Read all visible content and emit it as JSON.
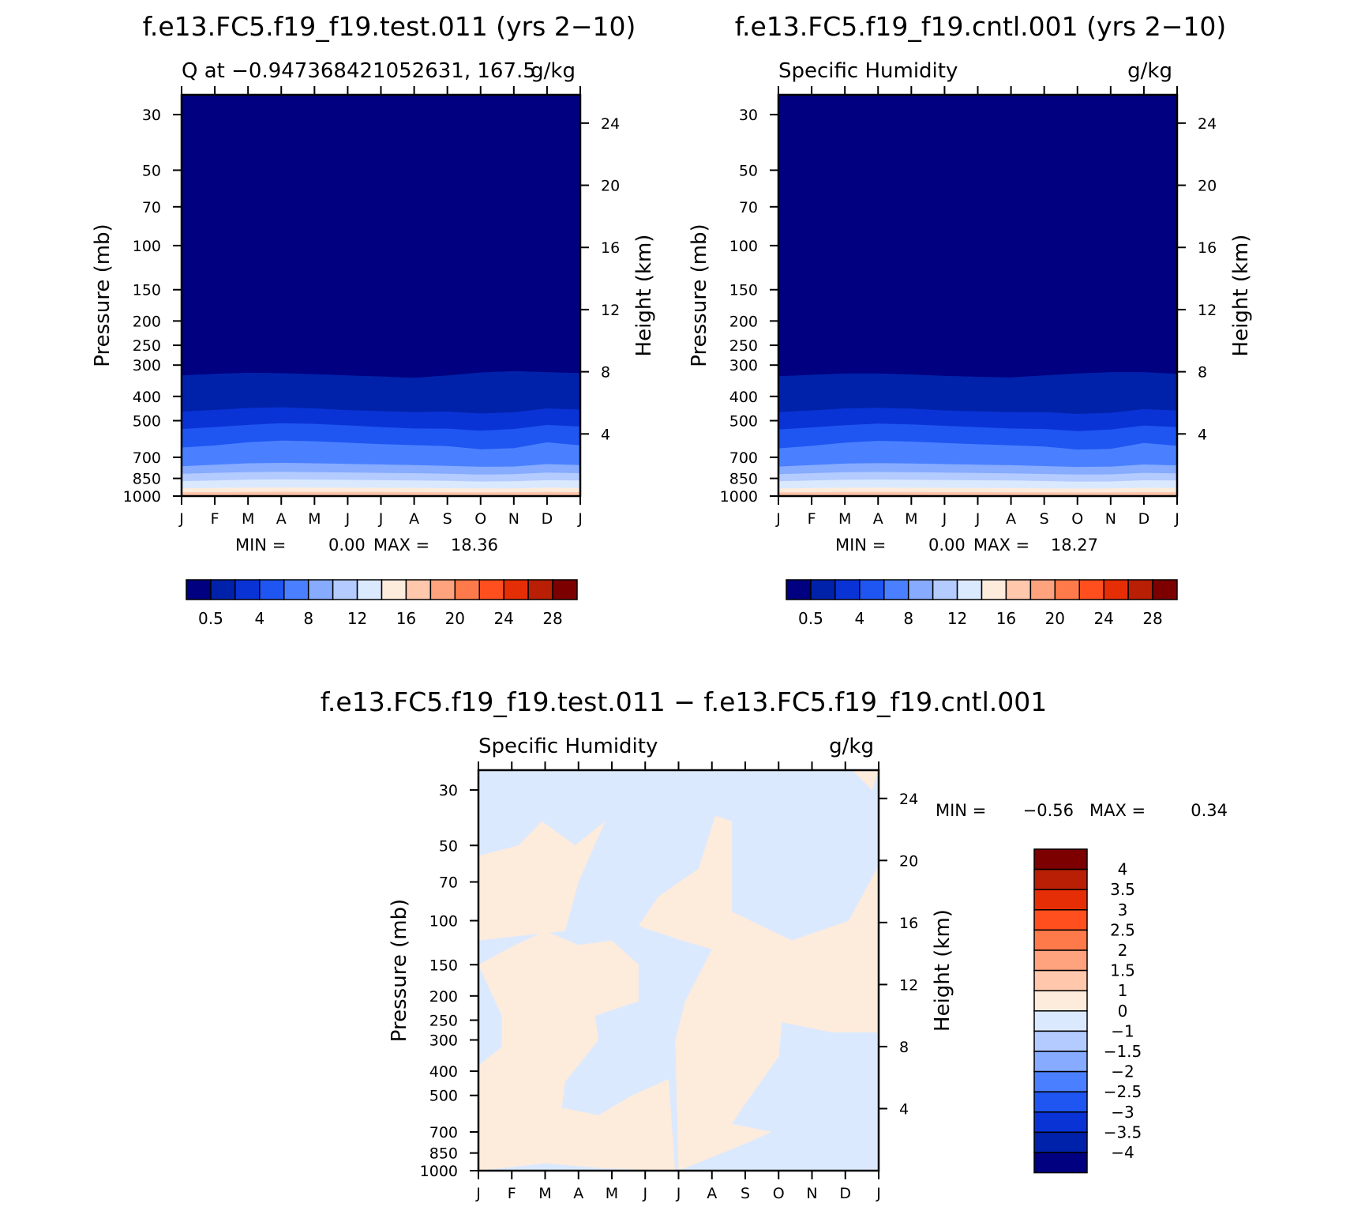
{
  "colors": {
    "seq": [
      "#000080",
      "#0022aa",
      "#0a33d6",
      "#1f55f0",
      "#4a80ff",
      "#86abff",
      "#b3cbff",
      "#dbe9ff",
      "#fdebdc",
      "#ffc7ac",
      "#ffa27e",
      "#ff7a4a",
      "#ff4f1e",
      "#e62e06",
      "#b81f05",
      "#7d0000"
    ],
    "diff": [
      "#000080",
      "#0022aa",
      "#0a33d6",
      "#1f55f0",
      "#4a80ff",
      "#86abff",
      "#b3cbff",
      "#dbe9ff",
      "#fdebdc",
      "#ffc7ac",
      "#ffa27e",
      "#ff7a4a",
      "#ff4f1e",
      "#e62e06",
      "#b81f05",
      "#7d0000"
    ]
  },
  "chart_data": [
    {
      "type": "heatmap",
      "title": "f.e13.FC5.f19_f19.test.011 (yrs 2-10)",
      "subtitle_left": "Q at -0.947368421052631, 167.5",
      "subtitle_right": "g/kg",
      "xlabel": "",
      "ylabel": "Pressure (mb)",
      "ylabel_right": "Height (km)",
      "x_ticks": [
        "J",
        "F",
        "M",
        "A",
        "M",
        "J",
        "J",
        "A",
        "S",
        "O",
        "N",
        "D",
        "J"
      ],
      "y_ticks": [
        "30",
        "50",
        "70",
        "100",
        "150",
        "200",
        "250",
        "300",
        "400",
        "500",
        "700",
        "850",
        "1000"
      ],
      "y_ticks_right": [
        "24",
        "20",
        "16",
        "12",
        "8",
        "4"
      ],
      "ylim": [
        1000,
        25
      ],
      "min_label": "MIN =",
      "min_value": "0.00",
      "max_label": "MAX =",
      "max_value": "18.36",
      "colorbar_labels": [
        "0.5",
        "4",
        "8",
        "12",
        "16",
        "20",
        "24",
        "28"
      ],
      "contour_levels_pressure_mb": [
        [
          330,
          325,
          322,
          323,
          326,
          330,
          333,
          337,
          330,
          321,
          317,
          320,
          323
        ],
        [
          460,
          453,
          445,
          442,
          447,
          454,
          458,
          462,
          460,
          468,
          463,
          447,
          452
        ],
        [
          540,
          530,
          520,
          512,
          515,
          522,
          530,
          537,
          538,
          548,
          540,
          520,
          528
        ],
        [
          640,
          628,
          610,
          600,
          604,
          612,
          620,
          626,
          632,
          650,
          644,
          610,
          628
        ],
        [
          760,
          750,
          740,
          737,
          740,
          744,
          748,
          752,
          758,
          764,
          762,
          745,
          752
        ],
        [
          815,
          808,
          802,
          800,
          802,
          805,
          808,
          810,
          815,
          820,
          818,
          806,
          810
        ],
        [
          872,
          866,
          860,
          858,
          860,
          862,
          864,
          866,
          870,
          875,
          873,
          864,
          866
        ],
        [
          930,
          928,
          925,
          924,
          925,
          926,
          927,
          928,
          930,
          932,
          931,
          926,
          928
        ],
        [
          965,
          964,
          962,
          961,
          962,
          963,
          963,
          964,
          965,
          966,
          965,
          963,
          964
        ],
        [
          990,
          990,
          989,
          989,
          989,
          990,
          990,
          990,
          990,
          991,
          990,
          990,
          990
        ]
      ]
    },
    {
      "type": "heatmap",
      "title": "f.e13.FC5.f19_f19.cntl.001 (yrs 2-10)",
      "subtitle_left": "Specific Humidity",
      "subtitle_right": "g/kg",
      "xlabel": "",
      "ylabel": "Pressure (mb)",
      "ylabel_right": "Height (km)",
      "x_ticks": [
        "J",
        "F",
        "M",
        "A",
        "M",
        "J",
        "J",
        "A",
        "S",
        "O",
        "N",
        "D",
        "J"
      ],
      "y_ticks": [
        "30",
        "50",
        "70",
        "100",
        "150",
        "200",
        "250",
        "300",
        "400",
        "500",
        "700",
        "850",
        "1000"
      ],
      "y_ticks_right": [
        "24",
        "20",
        "16",
        "12",
        "8",
        "4"
      ],
      "ylim": [
        1000,
        25
      ],
      "min_label": "MIN =",
      "min_value": "0.00",
      "max_label": "MAX =",
      "max_value": "18.27",
      "colorbar_labels": [
        "0.5",
        "4",
        "8",
        "12",
        "16",
        "20",
        "24",
        "28"
      ],
      "contour_levels_pressure_mb": [
        [
          332,
          328,
          324,
          324,
          327,
          331,
          334,
          336,
          330,
          324,
          320,
          320,
          325
        ],
        [
          462,
          455,
          447,
          444,
          448,
          455,
          459,
          462,
          462,
          470,
          465,
          450,
          455
        ],
        [
          542,
          532,
          521,
          514,
          517,
          524,
          531,
          537,
          540,
          550,
          542,
          523,
          530
        ],
        [
          645,
          630,
          612,
          602,
          606,
          614,
          621,
          627,
          634,
          652,
          648,
          614,
          630
        ],
        [
          762,
          752,
          742,
          738,
          741,
          745,
          749,
          753,
          759,
          765,
          763,
          748,
          754
        ],
        [
          817,
          810,
          803,
          801,
          803,
          806,
          809,
          811,
          816,
          821,
          819,
          808,
          812
        ],
        [
          873,
          867,
          861,
          859,
          861,
          863,
          865,
          867,
          871,
          876,
          874,
          865,
          867
        ],
        [
          931,
          929,
          926,
          925,
          926,
          927,
          928,
          929,
          931,
          933,
          932,
          927,
          929
        ],
        [
          966,
          965,
          963,
          962,
          963,
          964,
          964,
          965,
          966,
          967,
          966,
          964,
          965
        ],
        [
          990,
          990,
          989,
          989,
          989,
          990,
          990,
          990,
          990,
          991,
          990,
          990,
          990
        ]
      ]
    },
    {
      "type": "heatmap",
      "title": "f.e13.FC5.f19_f19.test.011 - f.e13.FC5.f19_f19.cntl.001",
      "subtitle_left": "Specific Humidity",
      "subtitle_right": "g/kg",
      "xlabel": "",
      "ylabel": "Pressure (mb)",
      "ylabel_right": "Height (km)",
      "x_ticks": [
        "J",
        "F",
        "M",
        "A",
        "M",
        "J",
        "J",
        "A",
        "S",
        "O",
        "N",
        "D",
        "J"
      ],
      "y_ticks": [
        "30",
        "50",
        "70",
        "100",
        "150",
        "200",
        "250",
        "300",
        "400",
        "500",
        "700",
        "850",
        "1000"
      ],
      "y_ticks_right": [
        "24",
        "20",
        "16",
        "12",
        "8",
        "4"
      ],
      "ylim": [
        1000,
        25
      ],
      "min_label": "MIN =",
      "min_value": "-0.56",
      "max_label": "MAX =",
      "max_value": "0.34",
      "background_class": "0 to -1 (light blue)",
      "colorbar_labels": [
        "4",
        "3.5",
        "3",
        "2.5",
        "2",
        "1.5",
        "1",
        "0",
        "-1",
        "-1.5",
        "-2",
        "-2.5",
        "-3",
        "-3.5",
        "-4"
      ],
      "positive_regions_month_pressure": [
        [
          [
            0,
            55
          ],
          [
            1.2,
            50
          ],
          [
            1.9,
            40
          ],
          [
            2.9,
            50
          ],
          [
            3.8,
            40
          ],
          [
            3.0,
            70
          ],
          [
            2.6,
            110
          ],
          [
            0,
            120
          ]
        ],
        [
          [
            0,
            150
          ],
          [
            1.1,
            125
          ],
          [
            2,
            110
          ],
          [
            3,
            125
          ],
          [
            4,
            120
          ],
          [
            4.8,
            150
          ],
          [
            4.8,
            210
          ],
          [
            3.5,
            240
          ],
          [
            3.6,
            300
          ],
          [
            3.2,
            350
          ],
          [
            2.6,
            440
          ],
          [
            2.5,
            560
          ],
          [
            3.6,
            600
          ],
          [
            4.6,
            500
          ],
          [
            5.7,
            430
          ],
          [
            5.9,
            1000
          ],
          [
            3.8,
            980
          ],
          [
            2.0,
            935
          ],
          [
            0,
            1000
          ],
          [
            0,
            380
          ],
          [
            0.7,
            320
          ],
          [
            0.7,
            240
          ]
        ],
        [
          [
            4.8,
            105
          ],
          [
            5.4,
            80
          ],
          [
            6.6,
            62
          ],
          [
            7.1,
            38
          ],
          [
            7.6,
            40
          ],
          [
            7.6,
            92
          ],
          [
            9.4,
            120
          ],
          [
            11.1,
            100
          ],
          [
            12,
            60
          ],
          [
            12,
            280
          ],
          [
            10.6,
            280
          ],
          [
            9.1,
            255
          ],
          [
            9.0,
            350
          ],
          [
            8.0,
            540
          ],
          [
            7.6,
            650
          ],
          [
            8.8,
            700
          ],
          [
            7.9,
            790
          ],
          [
            6.0,
            1000
          ],
          [
            5.9,
            300
          ],
          [
            6.2,
            210
          ],
          [
            7.0,
            130
          ],
          [
            6.1,
            120
          ]
        ],
        [
          [
            11.2,
            25
          ],
          [
            12,
            25
          ],
          [
            11.8,
            30
          ]
        ]
      ]
    }
  ]
}
